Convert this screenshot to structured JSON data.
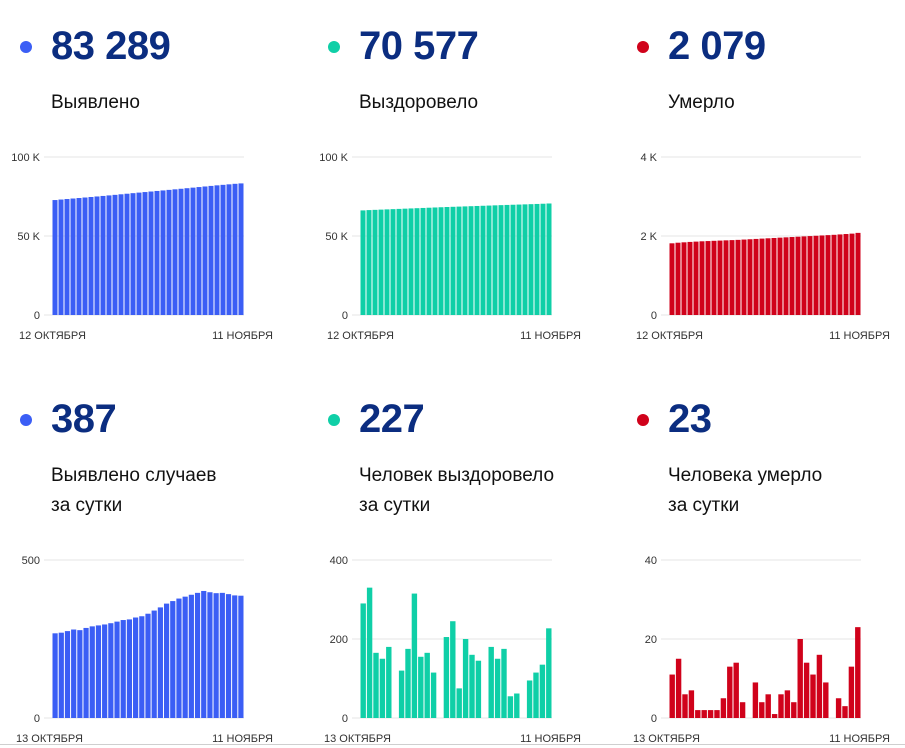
{
  "panels": [
    {
      "color": "#3b5ef5",
      "number": "83 289",
      "label_lines": [
        "Выявлено"
      ],
      "chart_data": {
        "type": "bar",
        "ymax": 100000,
        "yticks": [
          {
            "value": 100000,
            "label": "100 K"
          },
          {
            "value": 50000,
            "label": "50 K"
          },
          {
            "value": 0,
            "label": "0"
          }
        ],
        "xstart": "12 ОКТЯБРЯ",
        "xend": "11 НОЯБРЯ",
        "values": [
          72750,
          73080,
          73400,
          73720,
          74040,
          74360,
          74690,
          75020,
          75350,
          75690,
          76040,
          76400,
          76750,
          77110,
          77460,
          77810,
          78150,
          78500,
          78840,
          79190,
          79540,
          79890,
          80250,
          80610,
          80980,
          81340,
          81700,
          82060,
          82380,
          82700,
          83030,
          83289
        ]
      }
    },
    {
      "color": "#0fcfa7",
      "number": "70 577",
      "label_lines": [
        "Выздоровело"
      ],
      "chart_data": {
        "type": "bar",
        "ymax": 100000,
        "yticks": [
          {
            "value": 100000,
            "label": "100 K"
          },
          {
            "value": 50000,
            "label": "50 K"
          },
          {
            "value": 0,
            "label": "0"
          }
        ],
        "xstart": "12 ОКТЯБРЯ",
        "xend": "11 НОЯБРЯ",
        "values": [
          66200,
          66400,
          66550,
          66700,
          66850,
          67000,
          67150,
          67300,
          67450,
          67600,
          67750,
          67900,
          68050,
          68200,
          68350,
          68480,
          68600,
          68730,
          68860,
          69000,
          69130,
          69260,
          69400,
          69530,
          69660,
          69780,
          69900,
          70020,
          70150,
          70280,
          70420,
          70577
        ]
      }
    },
    {
      "color": "#d0021b",
      "number": "2 079",
      "label_lines": [
        "Умерло"
      ],
      "chart_data": {
        "type": "bar",
        "ymax": 4000,
        "yticks": [
          {
            "value": 4000,
            "label": "4 K"
          },
          {
            "value": 2000,
            "label": "2 K"
          },
          {
            "value": 0,
            "label": "0"
          }
        ],
        "xstart": "12 ОКТЯБРЯ",
        "xend": "11 НОЯБРЯ",
        "values": [
          1815,
          1830,
          1840,
          1850,
          1858,
          1866,
          1872,
          1878,
          1884,
          1890,
          1896,
          1902,
          1910,
          1918,
          1926,
          1934,
          1942,
          1950,
          1958,
          1966,
          1974,
          1982,
          1990,
          1998,
          2006,
          2014,
          2022,
          2030,
          2040,
          2050,
          2060,
          2079
        ]
      }
    },
    {
      "color": "#3b5ef5",
      "number": "387",
      "label_lines": [
        "Выявлено случаев",
        "за сутки"
      ],
      "chart_data": {
        "type": "bar",
        "ymax": 500,
        "yticks": [
          {
            "value": 500,
            "label": "500"
          },
          {
            "value": 0,
            "label": "0"
          }
        ],
        "xstart": "13 ОКТЯБРЯ",
        "xend": "11 НОЯБРЯ",
        "values": [
          268,
          270,
          275,
          280,
          278,
          285,
          290,
          293,
          296,
          300,
          305,
          310,
          312,
          318,
          322,
          330,
          340,
          350,
          362,
          370,
          378,
          384,
          390,
          396,
          402,
          398,
          395,
          396,
          392,
          388,
          387
        ]
      }
    },
    {
      "color": "#0fcfa7",
      "number": "227",
      "label_lines": [
        "Человек выздоровело",
        "за сутки"
      ],
      "chart_data": {
        "type": "bar",
        "ymax": 400,
        "yticks": [
          {
            "value": 400,
            "label": "400"
          },
          {
            "value": 200,
            "label": "200"
          },
          {
            "value": 0,
            "label": "0"
          }
        ],
        "xstart": "13 ОКТЯБРЯ",
        "xend": "11 НОЯБРЯ",
        "values": [
          290,
          330,
          165,
          150,
          180,
          0,
          120,
          175,
          315,
          155,
          165,
          115,
          0,
          205,
          245,
          75,
          200,
          160,
          145,
          0,
          180,
          150,
          175,
          55,
          62,
          0,
          95,
          115,
          135,
          227
        ]
      }
    },
    {
      "color": "#d0021b",
      "number": "23",
      "label_lines": [
        "Человека умерло",
        "за сутки"
      ],
      "chart_data": {
        "type": "bar",
        "ymax": 40,
        "yticks": [
          {
            "value": 40,
            "label": "40"
          },
          {
            "value": 20,
            "label": "20"
          },
          {
            "value": 0,
            "label": "0"
          }
        ],
        "xstart": "13 ОКТЯБРЯ",
        "xend": "11 НОЯБРЯ",
        "values": [
          11,
          15,
          6,
          7,
          2,
          2,
          2,
          2,
          5,
          13,
          14,
          4,
          0,
          9,
          4,
          6,
          1,
          6,
          7,
          4,
          20,
          14,
          11,
          16,
          9,
          0,
          5,
          3,
          13,
          23
        ]
      }
    }
  ]
}
